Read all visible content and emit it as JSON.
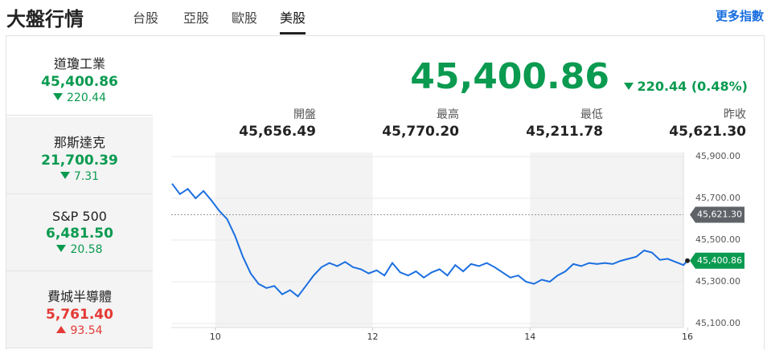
{
  "header": {
    "title": "大盤行情",
    "tabs": [
      "台股",
      "亞股",
      "歐股",
      "美股"
    ],
    "active_tab": 3,
    "more_link": "更多指數"
  },
  "indices": [
    {
      "name": "道瓊工業",
      "value": "45,400.86",
      "change": "220.44",
      "direction": "down"
    },
    {
      "name": "那斯達克",
      "value": "21,700.39",
      "change": "7.31",
      "direction": "down"
    },
    {
      "name": "S&P 500",
      "value": "6,481.50",
      "change": "20.58",
      "direction": "down"
    },
    {
      "name": "費城半導體",
      "value": "5,761.40",
      "change": "93.54",
      "direction": "up"
    }
  ],
  "selected_index": 0,
  "quote": {
    "price": "45,400.86",
    "change": "220.44 (0.48%)",
    "direction": "down",
    "stats": [
      {
        "label": "開盤",
        "value": "45,656.49"
      },
      {
        "label": "最高",
        "value": "45,770.20"
      },
      {
        "label": "最低",
        "value": "45,211.78"
      },
      {
        "label": "昨收",
        "value": "45,621.30"
      }
    ]
  },
  "chart_data": {
    "type": "line",
    "x": [
      9.45,
      9.55,
      9.65,
      9.75,
      9.85,
      9.95,
      10.05,
      10.15,
      10.25,
      10.35,
      10.45,
      10.55,
      10.65,
      10.75,
      10.85,
      10.95,
      11.05,
      11.15,
      11.25,
      11.35,
      11.45,
      11.55,
      11.65,
      11.75,
      11.85,
      11.95,
      12.05,
      12.15,
      12.25,
      12.35,
      12.45,
      12.55,
      12.65,
      12.75,
      12.85,
      12.95,
      13.05,
      13.15,
      13.25,
      13.35,
      13.45,
      13.55,
      13.65,
      13.75,
      13.85,
      13.95,
      14.05,
      14.15,
      14.25,
      14.35,
      14.45,
      14.55,
      14.65,
      14.75,
      14.85,
      14.95,
      15.05,
      15.15,
      15.25,
      15.35,
      15.45,
      15.55,
      15.65,
      15.75,
      15.85,
      15.95,
      16.0
    ],
    "series": [
      {
        "color": "#1a6fe0",
        "values": [
          45770,
          45720,
          45745,
          45700,
          45735,
          45690,
          45640,
          45600,
          45520,
          45420,
          45340,
          45290,
          45270,
          45280,
          45240,
          45260,
          45230,
          45280,
          45330,
          45370,
          45390,
          45375,
          45395,
          45370,
          45360,
          45340,
          45355,
          45330,
          45390,
          45345,
          45330,
          45350,
          45320,
          45345,
          45360,
          45330,
          45380,
          45350,
          45385,
          45375,
          45390,
          45370,
          45345,
          45320,
          45330,
          45300,
          45290,
          45310,
          45300,
          45330,
          45350,
          45385,
          45375,
          45390,
          45385,
          45390,
          45385,
          45400,
          45410,
          45420,
          45450,
          45440,
          45405,
          45410,
          45395,
          45380,
          45400.86
        ]
      }
    ],
    "xlim": [
      9.44,
      16
    ],
    "xticks": [
      10,
      12,
      14,
      16
    ],
    "ylim": [
      45100,
      45900
    ],
    "yticks": [
      {
        "value": 45100,
        "label": "45,100.00"
      },
      {
        "value": 45300,
        "label": "45,300.00"
      },
      {
        "value": 45500,
        "label": "45,500.00"
      },
      {
        "value": 45700,
        "label": "45,700.00"
      },
      {
        "value": 45900,
        "label": "45,900.00"
      }
    ],
    "grid": true,
    "shaded": [
      [
        10,
        12
      ],
      [
        14,
        16
      ]
    ],
    "reference_line": {
      "value": 45621.3,
      "label": "45,621.30"
    },
    "last_label": "45,400.86"
  }
}
